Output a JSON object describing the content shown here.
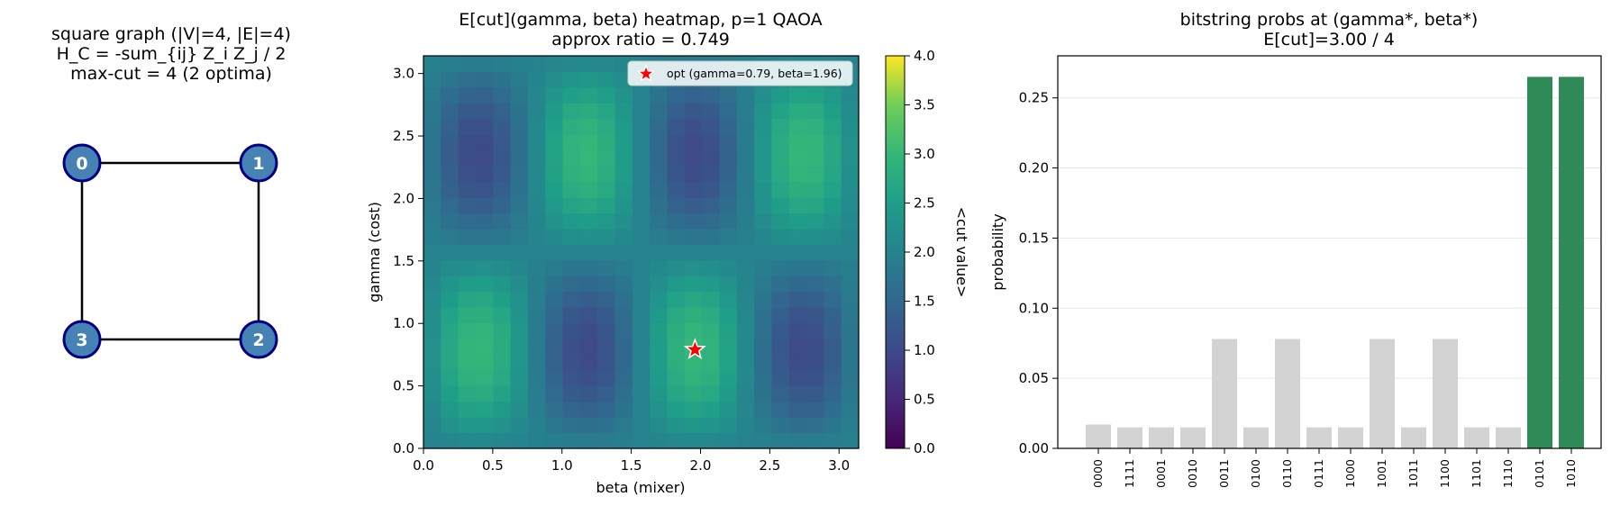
{
  "chart_data": [
    {
      "type": "graph",
      "title_lines": [
        "square graph (|V|=4, |E|=4)",
        "H_C = -sum_{ij} Z_i Z_j / 2",
        "max-cut = 4  (2 optima)"
      ],
      "nodes": [
        {
          "label": "0"
        },
        {
          "label": "1"
        },
        {
          "label": "2"
        },
        {
          "label": "3"
        }
      ],
      "edges": [
        [
          "0",
          "1"
        ],
        [
          "1",
          "2"
        ],
        [
          "2",
          "3"
        ],
        [
          "3",
          "0"
        ]
      ],
      "node_color": "#4682b4",
      "node_edge_color": "#000080"
    },
    {
      "type": "heatmap",
      "title_lines": [
        "E[cut](gamma, beta) heatmap, p=1 QAOA",
        "approx ratio = 0.749"
      ],
      "xlabel": "beta (mixer)",
      "ylabel": "gamma (cost)",
      "xlim": [
        0,
        3.14159
      ],
      "ylim": [
        0,
        3.14159
      ],
      "x_ticks": [
        "0.0",
        "0.5",
        "1.0",
        "1.5",
        "2.0",
        "2.5",
        "3.0"
      ],
      "y_ticks": [
        "0.0",
        "0.5",
        "1.0",
        "1.5",
        "2.0",
        "2.5",
        "3.0"
      ],
      "grid_size": 25,
      "formula": "2 + sin(4*beta) * sin(2*gamma)",
      "colorbar": {
        "label": "<cut value>",
        "vmin": 0,
        "vmax": 4,
        "ticks": [
          "0.0",
          "0.5",
          "1.0",
          "1.5",
          "2.0",
          "2.5",
          "3.0",
          "3.5",
          "4.0"
        ]
      },
      "colormap": "viridis",
      "optimum": {
        "gamma": 0.79,
        "beta": 1.96,
        "legend": "opt (gamma=0.79, beta=1.96)",
        "color": "#ff0000"
      }
    },
    {
      "type": "bar",
      "title_lines": [
        "bitstring probs at (gamma*, beta*)",
        "E[cut]=3.00 / 4"
      ],
      "xlabel": "",
      "ylabel": "probability",
      "ylim": [
        0,
        0.28
      ],
      "y_ticks": [
        "0.00",
        "0.05",
        "0.10",
        "0.15",
        "0.20",
        "0.25"
      ],
      "grid": "y",
      "categories": [
        "0000",
        "1111",
        "0001",
        "0010",
        "0011",
        "0100",
        "0110",
        "0111",
        "1000",
        "1001",
        "1011",
        "1100",
        "1101",
        "1110",
        "0101",
        "1010"
      ],
      "values": [
        0.017,
        0.015,
        0.015,
        0.015,
        0.078,
        0.015,
        0.078,
        0.015,
        0.015,
        0.078,
        0.015,
        0.078,
        0.015,
        0.015,
        0.265,
        0.265
      ],
      "highlight": [
        "0101",
        "1010"
      ],
      "bar_color": "#d3d3d3",
      "highlight_color": "#2e8b57"
    }
  ]
}
